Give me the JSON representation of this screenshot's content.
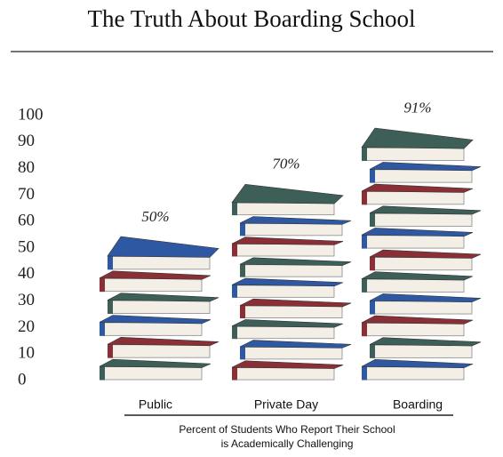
{
  "chart_data": {
    "type": "bar",
    "title": "The Truth About Boarding School",
    "categories": [
      "Public",
      "Private Day",
      "Boarding"
    ],
    "values": [
      50,
      70,
      91
    ],
    "value_labels": [
      "50%",
      "70%",
      "91%"
    ],
    "xlabel": [
      "Percent of Students Who Report Their School",
      "is Academically Challenging"
    ],
    "ylim": [
      0,
      100
    ],
    "yticks": [
      0,
      10,
      20,
      30,
      40,
      50,
      60,
      70,
      80,
      90,
      100
    ],
    "colors": [
      "#3d5f57",
      "#8a2f35",
      "#2f58a3"
    ]
  }
}
